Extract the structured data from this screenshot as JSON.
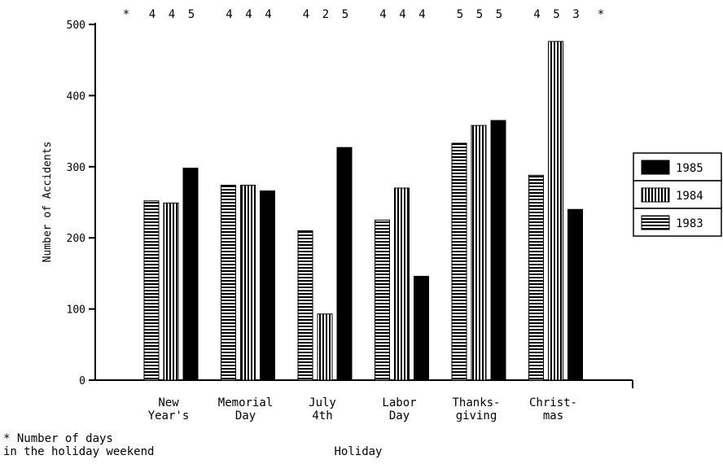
{
  "chart_data": {
    "type": "bar",
    "title": "",
    "xlabel": "Holiday",
    "ylabel": "Number of Accidents",
    "ylim": [
      0,
      500
    ],
    "yticks": [
      "0",
      "100",
      "200",
      "300",
      "400",
      "500"
    ],
    "grid": false,
    "legend_position": "right",
    "categories": [
      [
        "New",
        "Year's"
      ],
      [
        "Memorial",
        "Day"
      ],
      [
        "July",
        "4th"
      ],
      [
        "Labor",
        "Day"
      ],
      [
        "Thanks-",
        "giving"
      ],
      [
        "Christ-",
        "mas"
      ]
    ],
    "days_in_weekend": [
      [
        "4",
        "4",
        "5"
      ],
      [
        "4",
        "4",
        "4"
      ],
      [
        "4",
        "2",
        "5"
      ],
      [
        "4",
        "4",
        "4"
      ],
      [
        "5",
        "5",
        "5"
      ],
      [
        "4",
        "5",
        "3"
      ]
    ],
    "days_marker": "*",
    "footnote": [
      "* Number of days",
      "in the holiday weekend"
    ],
    "series": [
      {
        "name": "1983",
        "pattern": "horizontal-stripes",
        "values": [
          252,
          274,
          210,
          225,
          333,
          288
        ]
      },
      {
        "name": "1984",
        "pattern": "vertical-stripes",
        "values": [
          249,
          274,
          93,
          270,
          358,
          476
        ]
      },
      {
        "name": "1985",
        "pattern": "solid",
        "color": "#000000",
        "values": [
          298,
          266,
          327,
          146,
          365,
          240
        ]
      }
    ],
    "legend_order": [
      "1985",
      "1984",
      "1983"
    ]
  }
}
